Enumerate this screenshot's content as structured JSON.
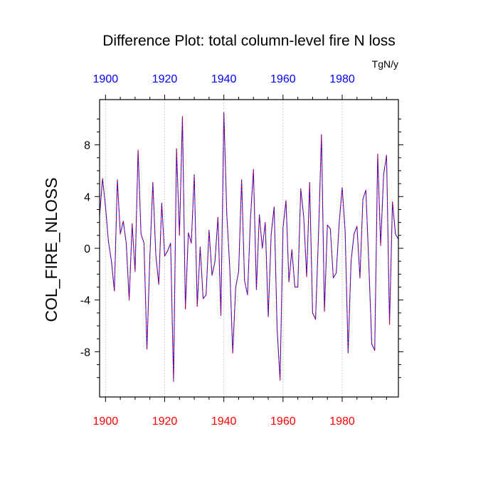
{
  "chart_data": {
    "type": "line",
    "title": "Difference Plot: total column-level fire N loss",
    "units": "TgN/y",
    "ylabel": "COL_FIRE_NLOSS",
    "xlabel": "",
    "xlim": [
      1898,
      1999
    ],
    "ylim": [
      -11.5,
      11.5
    ],
    "xticks": [
      1900,
      1920,
      1940,
      1960,
      1980
    ],
    "yticks": [
      8,
      4,
      0,
      -4,
      -8
    ],
    "x_tick_labels": [
      "1900",
      "1920",
      "1940",
      "1960",
      "1980"
    ],
    "y_tick_labels": [
      "8",
      "4",
      "0",
      "-4",
      "-8"
    ],
    "grid": "vertical dotted lines at x ticks",
    "colors": {
      "line_primary": "#0000ff",
      "line_overlay": "#ff0000",
      "bottom_tick_labels": "#ff0000",
      "top_tick_labels": "#0000ff",
      "grid": "#b0b0b0"
    },
    "series": [
      {
        "x": [
          1898,
          1899,
          1900,
          1901,
          1902,
          1903,
          1904,
          1905,
          1906,
          1907,
          1908,
          1909,
          1910,
          1911,
          1912,
          1913,
          1914,
          1915,
          1916,
          1917,
          1918,
          1919,
          1920,
          1921,
          1922,
          1923,
          1924,
          1925,
          1926,
          1927,
          1928,
          1929,
          1930,
          1931,
          1932,
          1933,
          1934,
          1935,
          1936,
          1937,
          1938,
          1939,
          1940,
          1941,
          1942,
          1943,
          1944,
          1945,
          1946,
          1947,
          1948,
          1949,
          1950,
          1951,
          1952,
          1953,
          1954,
          1955,
          1956,
          1957,
          1958,
          1959,
          1960,
          1961,
          1962,
          1963,
          1964,
          1965,
          1966,
          1967,
          1968,
          1969,
          1970,
          1971,
          1972,
          1973,
          1974,
          1975,
          1976,
          1977,
          1978,
          1979,
          1980,
          1981,
          1982,
          1983,
          1984,
          1985,
          1986,
          1987,
          1988,
          1989,
          1990,
          1991,
          1992,
          1993,
          1994,
          1995,
          1996,
          1997,
          1998,
          1999
        ],
        "y": [
          2.5,
          5.4,
          3.2,
          0.5,
          -1.0,
          -3.3,
          5.3,
          1.1,
          2.1,
          0.4,
          -4.0,
          1.9,
          -1.8,
          7.6,
          1.1,
          0.4,
          -7.8,
          -0.6,
          5.1,
          -0.5,
          -2.8,
          3.5,
          -0.6,
          -0.2,
          0.4,
          -10.3,
          7.7,
          1.0,
          10.2,
          -4.7,
          1.2,
          0.4,
          5.7,
          -4.5,
          0.1,
          -3.9,
          -3.6,
          1.4,
          -2.1,
          -1.0,
          2.4,
          -5.2,
          10.5,
          2.6,
          -1.5,
          -8.1,
          -3.0,
          -1.8,
          5.3,
          -2.5,
          -3.6,
          2.3,
          6.1,
          -3.2,
          2.6,
          0.0,
          2.0,
          -5.3,
          1.1,
          3.2,
          -6.2,
          -10.2,
          1.6,
          3.7,
          -2.6,
          -0.1,
          -3.0,
          -3.0,
          4.6,
          2.4,
          -2.2,
          5.1,
          -5.0,
          -5.5,
          1.1,
          8.8,
          -4.9,
          1.8,
          1.5,
          -2.3,
          -1.9,
          2.0,
          4.7,
          1.3,
          -8.1,
          -1.0,
          1.1,
          1.7,
          -2.3,
          3.8,
          4.5,
          -1.2,
          -7.4,
          -7.9,
          7.3,
          0.2,
          5.7,
          7.2,
          -5.9,
          3.6,
          1.1,
          0.7
        ]
      }
    ]
  }
}
